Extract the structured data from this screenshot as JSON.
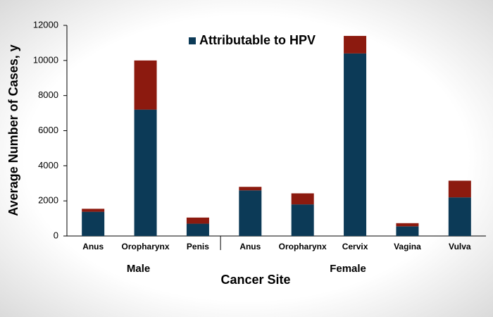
{
  "chart_data": {
    "type": "stacked_bar",
    "y_label": "Average Number of Cases, y",
    "x_label": "Cancer Site",
    "categories": [
      "Anus",
      "Oropharynx",
      "Penis",
      "Anus",
      "Oropharynx",
      "Cervix",
      "Vagina",
      "Vulva"
    ],
    "groups": [
      {
        "label": "Male",
        "count": 3
      },
      {
        "label": "Female",
        "count": 5
      }
    ],
    "series": [
      {
        "name": "Attributable to HPV",
        "color": "#0c3a57",
        "values": [
          1380,
          7200,
          700,
          2600,
          1800,
          10400,
          550,
          2200
        ]
      },
      {
        "color": "#8c1a0f",
        "values": [
          170,
          2800,
          350,
          200,
          630,
          1000,
          180,
          950
        ]
      }
    ],
    "ylim": [
      0,
      12000
    ],
    "yticks": [
      0,
      2000,
      4000,
      6000,
      8000,
      10000,
      12000
    ]
  }
}
